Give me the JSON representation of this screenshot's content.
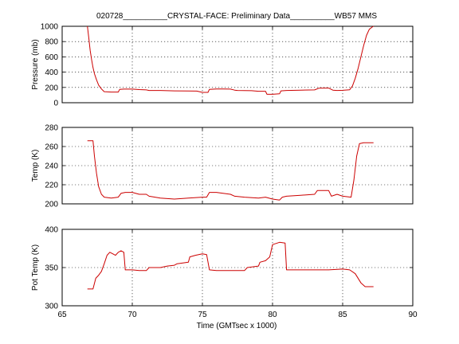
{
  "figure": {
    "title": "020728__________CRYSTAL-FACE: Preliminary Data__________WB57 MMS",
    "xlabel": "Time (GMTsec x 1000)"
  },
  "colors": {
    "series": "#cc0000"
  },
  "chart_data": [
    {
      "type": "line",
      "ylabel": "Pressure (mb)",
      "xlim": [
        65,
        90
      ],
      "ylim": [
        0,
        1000
      ],
      "xticks": [
        "65",
        "70",
        "75",
        "80",
        "85",
        "90"
      ],
      "yticks": [
        "0",
        "200",
        "400",
        "600",
        "800",
        "1000"
      ],
      "grid": true,
      "series": [
        {
          "x": [
            66.8,
            66.9,
            67.0,
            67.1,
            67.2,
            67.3,
            67.45,
            67.6,
            67.8,
            68.0,
            68.5,
            68.9,
            69.0,
            69.1,
            69.4,
            70.0,
            70.5,
            71.0,
            71.2,
            72.0,
            73.0,
            74.0,
            74.6,
            75.0,
            75.4,
            75.5,
            76.0,
            76.5,
            77.0,
            77.3,
            77.5,
            78.0,
            78.5,
            79.0,
            79.5,
            79.6,
            80.0,
            80.5,
            80.6,
            81.0,
            82.0,
            83.0,
            83.3,
            84.0,
            84.3,
            84.6,
            85.0,
            85.5,
            85.7,
            85.9,
            86.1,
            86.3,
            86.5,
            86.7,
            86.9,
            87.1,
            87.2
          ],
          "values": [
            1000,
            850,
            680,
            560,
            460,
            380,
            300,
            230,
            180,
            145,
            140,
            140,
            140,
            175,
            178,
            178,
            172,
            168,
            160,
            160,
            155,
            153,
            152,
            135,
            135,
            175,
            180,
            180,
            178,
            165,
            160,
            158,
            157,
            150,
            150,
            110,
            110,
            118,
            155,
            160,
            165,
            168,
            190,
            192,
            165,
            160,
            162,
            170,
            220,
            320,
            450,
            600,
            750,
            880,
            960,
            990,
            1000
          ]
        }
      ]
    },
    {
      "type": "line",
      "ylabel": "Temp (K)",
      "xlim": [
        65,
        90
      ],
      "ylim": [
        200,
        280
      ],
      "xticks": [
        "65",
        "70",
        "75",
        "80",
        "85",
        "90"
      ],
      "yticks": [
        "200",
        "220",
        "240",
        "260",
        "280"
      ],
      "grid": true,
      "series": [
        {
          "x": [
            66.8,
            67.2,
            67.3,
            67.45,
            67.6,
            67.8,
            68.0,
            68.5,
            69.0,
            69.2,
            69.5,
            70.0,
            70.5,
            71.0,
            71.2,
            72.0,
            73.0,
            74.0,
            75.0,
            75.3,
            75.5,
            76.0,
            77.0,
            77.3,
            78.0,
            79.0,
            79.5,
            80.0,
            80.5,
            80.7,
            81.0,
            82.0,
            83.0,
            83.2,
            84.0,
            84.2,
            84.6,
            85.0,
            85.6,
            85.8,
            86.0,
            86.2,
            86.5,
            87.2
          ],
          "values": [
            266,
            266,
            250,
            232,
            218,
            210,
            207,
            206,
            207,
            211,
            212,
            212,
            210,
            210,
            208,
            206,
            205,
            206,
            207,
            207,
            212,
            212,
            210,
            208,
            207,
            206,
            207,
            205,
            204,
            207,
            208,
            209,
            210,
            214,
            214,
            208,
            210,
            208,
            207,
            225,
            250,
            263,
            264,
            264
          ]
        }
      ]
    },
    {
      "type": "line",
      "ylabel": "Pot Temp (K)",
      "xlim": [
        65,
        90
      ],
      "ylim": [
        300,
        400
      ],
      "xticks": [
        "65",
        "70",
        "75",
        "80",
        "85",
        "90"
      ],
      "yticks": [
        "300",
        "350",
        "400"
      ],
      "grid": true,
      "series": [
        {
          "x": [
            66.8,
            67.2,
            67.4,
            67.6,
            67.8,
            68.0,
            68.2,
            68.4,
            68.6,
            68.8,
            69.0,
            69.2,
            69.4,
            69.5,
            70.0,
            70.5,
            71.0,
            71.2,
            72.0,
            72.5,
            73.0,
            73.2,
            73.6,
            74.0,
            74.1,
            74.5,
            75.0,
            75.3,
            75.5,
            76.0,
            77.0,
            78.0,
            78.2,
            79.0,
            79.1,
            79.5,
            79.8,
            80.0,
            80.5,
            80.9,
            81.0,
            82.0,
            83.0,
            84.0,
            85.0,
            85.5,
            85.9,
            86.3,
            86.6,
            87.2
          ],
          "values": [
            322,
            322,
            336,
            340,
            345,
            355,
            366,
            370,
            368,
            366,
            370,
            372,
            370,
            347,
            347,
            346,
            346,
            350,
            350,
            352,
            353,
            355,
            356,
            357,
            364,
            366,
            368,
            367,
            347,
            346,
            346,
            346,
            350,
            352,
            357,
            359,
            364,
            380,
            383,
            382,
            347,
            347,
            347,
            347,
            348,
            347,
            342,
            330,
            325,
            325
          ]
        }
      ]
    }
  ]
}
